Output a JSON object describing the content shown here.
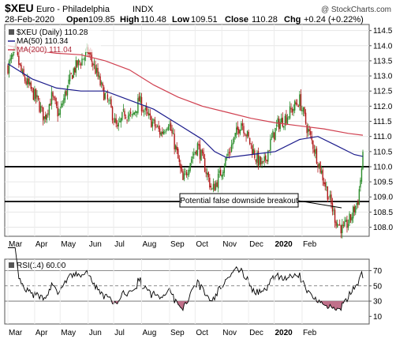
{
  "header": {
    "symbol": "$XEU",
    "name": "Euro - Philadelphia",
    "exchange": "INDX",
    "watermark": "@ StockCharts.com",
    "date": "28-Feb-2020",
    "open_label": "Open",
    "open": "109.85",
    "high_label": "High",
    "high": "110.48",
    "low_label": "Low",
    "low": "109.51",
    "close_label": "Close",
    "close": "110.28",
    "chg_label": "Chg",
    "chg": "+0.24 (+0.22%)"
  },
  "legend": {
    "price": "$XEU (Daily) 110.28",
    "ma50": "MA(50) 110.34",
    "ma200": "MA(200) 111.04"
  },
  "annotation": "Potential false downside breakout",
  "rsi_legend": "RSI(14) 60.00",
  "colors": {
    "up": "#2a8c2a",
    "down": "#b01818",
    "ma50": "#1c1c8c",
    "ma200": "#d04050",
    "rsi": "#000000",
    "rsi_fill": "#c0708a"
  },
  "chart_data": [
    {
      "type": "candlestick",
      "title": "$XEU Euro - Philadelphia INDX",
      "x_ticks": [
        "Mar",
        "Apr",
        "May",
        "Jun",
        "Jul",
        "Aug",
        "Sep",
        "Oct",
        "Nov",
        "Dec",
        "2020",
        "Feb"
      ],
      "y_ticks": [
        108.0,
        108.5,
        109.0,
        109.5,
        110.0,
        110.5,
        111.0,
        111.5,
        112.0,
        112.5,
        113.0,
        113.5,
        114.0,
        114.5
      ],
      "ylim": [
        107.7,
        114.7
      ],
      "horizontal_lines": [
        110.0,
        108.85
      ],
      "price_path": [
        [
          0,
          113.3
        ],
        [
          6,
          113.8
        ],
        [
          12,
          113.0
        ],
        [
          18,
          112.6
        ],
        [
          24,
          112.2
        ],
        [
          30,
          111.6
        ],
        [
          36,
          112.3
        ],
        [
          42,
          111.7
        ],
        [
          48,
          112.5
        ],
        [
          54,
          113.2
        ],
        [
          60,
          113.5
        ],
        [
          66,
          113.8
        ],
        [
          72,
          113.2
        ],
        [
          78,
          112.5
        ],
        [
          84,
          112.0
        ],
        [
          90,
          111.2
        ],
        [
          96,
          111.8
        ],
        [
          102,
          111.6
        ],
        [
          108,
          112.2
        ],
        [
          114,
          111.7
        ],
        [
          120,
          111.4
        ],
        [
          126,
          111.1
        ],
        [
          132,
          111.5
        ],
        [
          138,
          110.6
        ],
        [
          144,
          109.5
        ],
        [
          150,
          110.2
        ],
        [
          156,
          110.7
        ],
        [
          162,
          110.0
        ],
        [
          168,
          109.2
        ],
        [
          174,
          109.7
        ],
        [
          180,
          110.3
        ],
        [
          186,
          110.9
        ],
        [
          192,
          111.5
        ],
        [
          198,
          110.9
        ],
        [
          204,
          110.3
        ],
        [
          210,
          110.0
        ],
        [
          216,
          110.8
        ],
        [
          222,
          111.4
        ],
        [
          228,
          111.6
        ],
        [
          234,
          111.9
        ],
        [
          240,
          112.2
        ],
        [
          246,
          111.3
        ],
        [
          252,
          110.6
        ],
        [
          258,
          109.8
        ],
        [
          264,
          109.0
        ],
        [
          270,
          108.2
        ],
        [
          276,
          107.9
        ],
        [
          282,
          108.3
        ],
        [
          288,
          108.9
        ],
        [
          292,
          110.28
        ]
      ],
      "series": [
        {
          "name": "MA(50)",
          "last": 110.34,
          "path": [
            [
              0,
              113.4
            ],
            [
              20,
              112.9
            ],
            [
              40,
              112.6
            ],
            [
              60,
              112.5
            ],
            [
              80,
              112.5
            ],
            [
              100,
              112.2
            ],
            [
              120,
              111.9
            ],
            [
              140,
              111.4
            ],
            [
              160,
              110.9
            ],
            [
              170,
              110.5
            ],
            [
              180,
              110.3
            ],
            [
              200,
              110.4
            ],
            [
              220,
              110.5
            ],
            [
              240,
              110.9
            ],
            [
              255,
              111.0
            ],
            [
              270,
              110.7
            ],
            [
              285,
              110.4
            ],
            [
              292,
              110.34
            ]
          ]
        },
        {
          "name": "MA(200)",
          "last": 111.04,
          "path": [
            [
              0,
              114.0
            ],
            [
              20,
              113.85
            ],
            [
              40,
              113.75
            ],
            [
              60,
              113.7
            ],
            [
              80,
              113.5
            ],
            [
              100,
              113.2
            ],
            [
              120,
              112.7
            ],
            [
              140,
              112.3
            ],
            [
              160,
              112.0
            ],
            [
              180,
              111.8
            ],
            [
              200,
              111.6
            ],
            [
              220,
              111.45
            ],
            [
              240,
              111.35
            ],
            [
              260,
              111.25
            ],
            [
              280,
              111.1
            ],
            [
              292,
              111.04
            ]
          ]
        }
      ]
    },
    {
      "type": "line",
      "title": "RSI(14) 60.00",
      "y_ticks": [
        10,
        30,
        50,
        70
      ],
      "ylim": [
        0,
        85
      ],
      "reference_lines": [
        30,
        50,
        70
      ],
      "last": 60.0,
      "x_ticks": [
        "Mar",
        "Apr",
        "May",
        "Jun",
        "Jul",
        "Aug",
        "Sep",
        "Oct",
        "Nov",
        "Dec",
        "2020",
        "Feb"
      ]
    }
  ]
}
